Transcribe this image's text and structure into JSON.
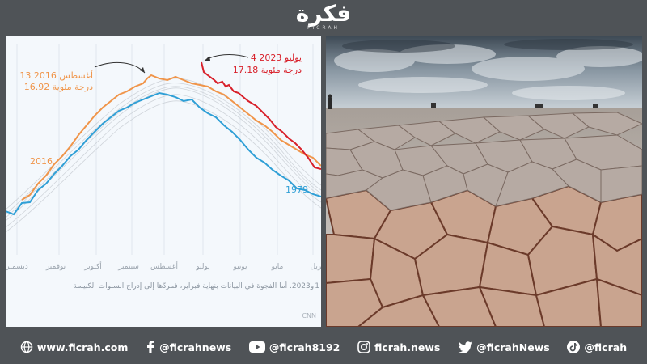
{
  "header": {
    "logo_text": "فكرة",
    "logo_sub": "FICRAH"
  },
  "chart": {
    "annotation_2016_date": "13  أغسطس 2016",
    "annotation_2016_value": "16.92  درجة مئوية",
    "annotation_2023_date": "4  يوليو 2023",
    "annotation_2023_value": "17.18  درجة مئوية",
    "label_2016": "2016",
    "label_1979": "1979",
    "months": [
      "ديسمبر",
      "نوفمبر",
      "أكتوبر",
      "سبتمبر",
      "أغسطس",
      "يوليو",
      "يونيو",
      "مايو",
      "بريل"
    ],
    "footnote": "و2023. أما الفجوة في البيانات بنهاية فبراير، فمردّها إلى إدراج السنوات الكبيسة.",
    "footnote_prefix": "1",
    "source": "CNN"
  },
  "colors": {
    "line_2016": "#f0954a",
    "line_2023": "#d8202a",
    "line_1979": "#2f9fd6",
    "past_years": "#c7ccd2",
    "background": "#4f5357"
  },
  "footer": {
    "items": [
      {
        "icon": "globe-icon",
        "label": "www.ficrah.com"
      },
      {
        "icon": "facebook-icon",
        "label": "@ficrahnews"
      },
      {
        "icon": "youtube-icon",
        "label": "@ficrah8192"
      },
      {
        "icon": "instagram-icon",
        "label": "ficrah.news"
      },
      {
        "icon": "twitter-icon",
        "label": "@ficrahNews"
      },
      {
        "icon": "tiktok-icon",
        "label": "@ficrah"
      }
    ]
  }
}
